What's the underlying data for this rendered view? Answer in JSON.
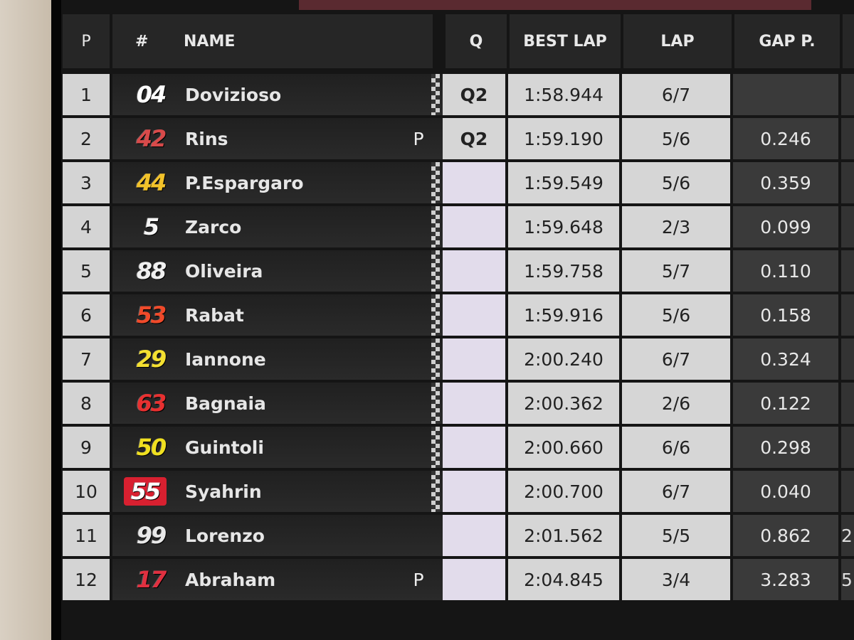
{
  "headers": {
    "pos": "P",
    "num": "#",
    "name": "NAME",
    "q": "Q",
    "best_lap": "BEST LAP",
    "lap": "LAP",
    "gap": "GAP P."
  },
  "rows": [
    {
      "pos": "1",
      "num": "04",
      "num_color": "#ffffff",
      "name": "Dovizioso",
      "pit": "",
      "flag": true,
      "q": "Q2",
      "best": "1:58.944",
      "lap": "6/7",
      "gap": "",
      "extra": ""
    },
    {
      "pos": "2",
      "num": "42",
      "num_color": "#d84a4a",
      "name": "Rins",
      "pit": "P",
      "flag": false,
      "q": "Q2",
      "best": "1:59.190",
      "lap": "5/6",
      "gap": "0.246",
      "extra": ""
    },
    {
      "pos": "3",
      "num": "44",
      "num_color": "#f2c22a",
      "name": "P.Espargaro",
      "pit": "",
      "flag": true,
      "q": "",
      "best": "1:59.549",
      "lap": "5/6",
      "gap": "0.359",
      "extra": ""
    },
    {
      "pos": "4",
      "num": "5",
      "num_color": "#f4f4f4",
      "name": "Zarco",
      "pit": "",
      "flag": true,
      "q": "",
      "best": "1:59.648",
      "lap": "2/3",
      "gap": "0.099",
      "extra": ""
    },
    {
      "pos": "5",
      "num": "88",
      "num_color": "#f0f0f0",
      "name": "Oliveira",
      "pit": "",
      "flag": true,
      "q": "",
      "best": "1:59.758",
      "lap": "5/7",
      "gap": "0.110",
      "extra": ""
    },
    {
      "pos": "6",
      "num": "53",
      "num_color": "#f04a2a",
      "name": "Rabat",
      "pit": "",
      "flag": true,
      "q": "",
      "best": "1:59.916",
      "lap": "5/6",
      "gap": "0.158",
      "extra": ""
    },
    {
      "pos": "7",
      "num": "29",
      "num_color": "#f4e030",
      "name": "Iannone",
      "pit": "",
      "flag": true,
      "q": "",
      "best": "2:00.240",
      "lap": "6/7",
      "gap": "0.324",
      "extra": ""
    },
    {
      "pos": "8",
      "num": "63",
      "num_color": "#e83030",
      "name": "Bagnaia",
      "pit": "",
      "flag": true,
      "q": "",
      "best": "2:00.362",
      "lap": "2/6",
      "gap": "0.122",
      "extra": ""
    },
    {
      "pos": "9",
      "num": "50",
      "num_color": "#f0e020",
      "name": "Guintoli",
      "pit": "",
      "flag": true,
      "q": "",
      "best": "2:00.660",
      "lap": "6/6",
      "gap": "0.298",
      "extra": ""
    },
    {
      "pos": "10",
      "num": "55",
      "num_color": "#e82030",
      "name": "Syahrin",
      "pit": "",
      "flag": true,
      "q": "",
      "best": "2:00.700",
      "lap": "6/7",
      "gap": "0.040",
      "extra": ""
    },
    {
      "pos": "11",
      "num": "99",
      "num_color": "#e8e8e8",
      "name": "Lorenzo",
      "pit": "",
      "flag": false,
      "q": "",
      "best": "2:01.562",
      "lap": "5/5",
      "gap": "0.862",
      "extra": "2"
    },
    {
      "pos": "12",
      "num": "17",
      "num_color": "#e03040",
      "name": "Abraham",
      "pit": "P",
      "flag": false,
      "q": "",
      "best": "2:04.845",
      "lap": "3/4",
      "gap": "3.283",
      "extra": "5"
    }
  ]
}
